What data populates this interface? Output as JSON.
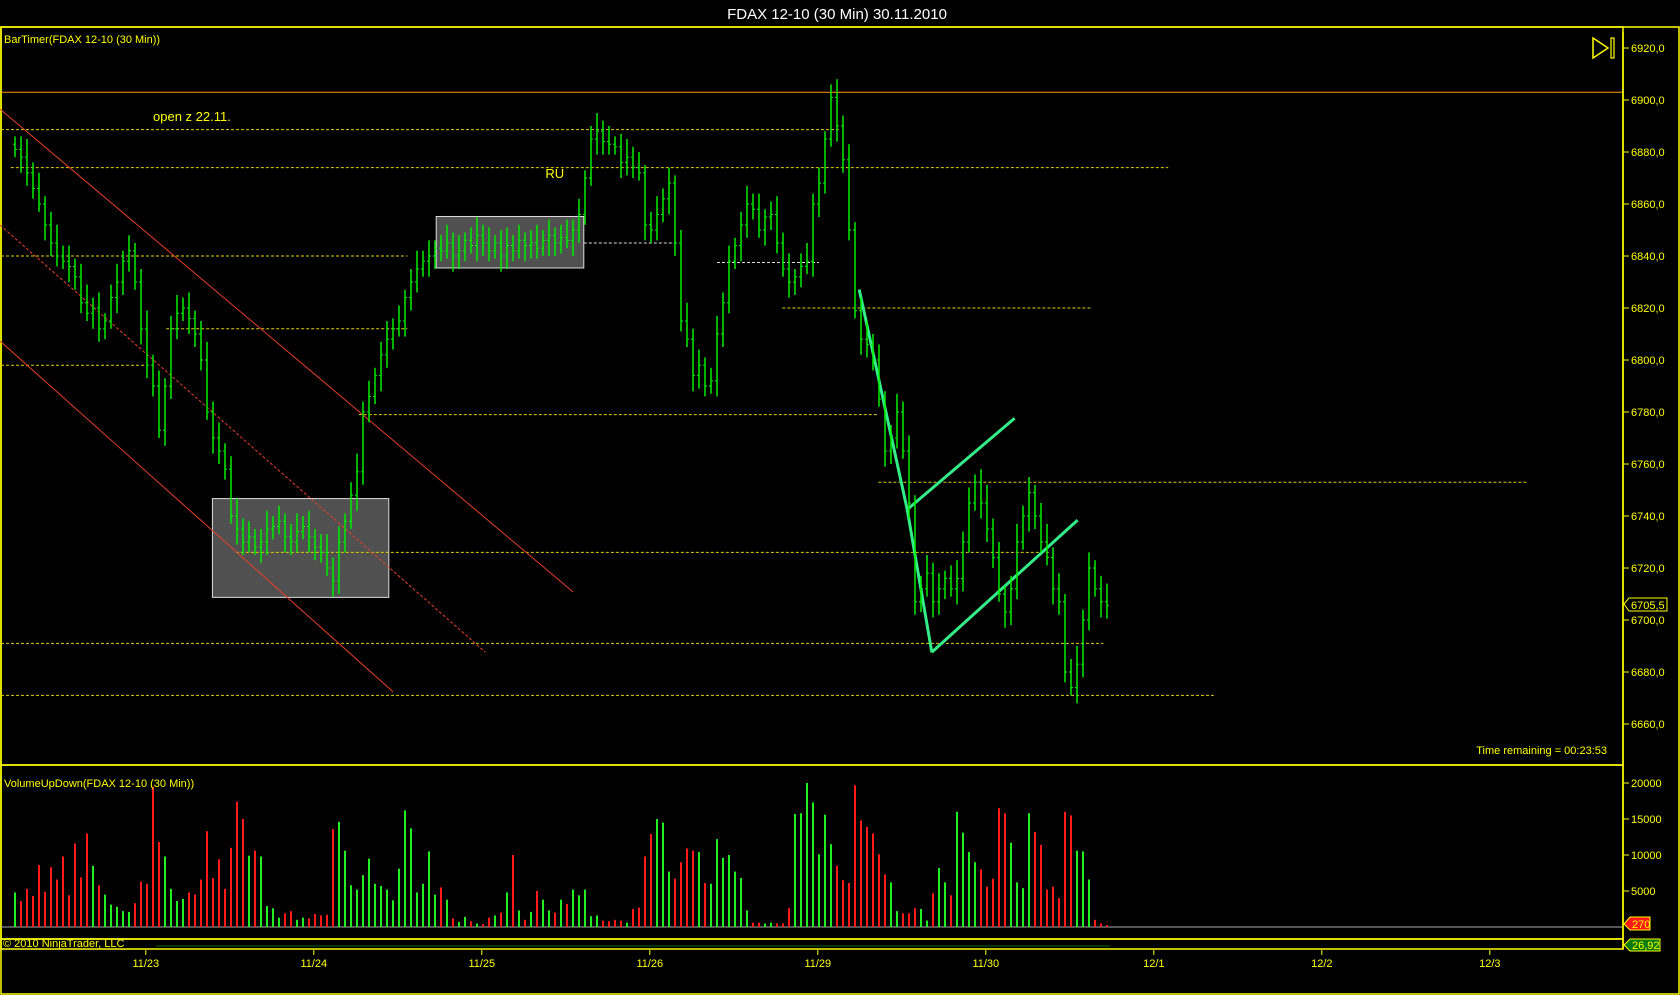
{
  "window": {
    "title": "FDAX 12-10 (30 Min)  30.11.2010"
  },
  "panels": {
    "price_label": "BarTimer(FDAX 12-10 (30 Min))",
    "volume_label": "VolumeUpDown(FDAX 12-10 (30 Min))",
    "copyright": "© 2010 NinjaTrader, LLC",
    "time_remaining": "Time remaining = 00:23:53",
    "last_price_tag": "6705,5",
    "last_volume_tag": "270",
    "indicator_tag": "26,92",
    "scroll_end_icon": "scroll-to-end-icon"
  },
  "colors": {
    "up": "#22ee22",
    "down": "#ff1a1a",
    "axis": "#ffff00",
    "price_bar": "#00ee00",
    "hline": "#e0d000",
    "channel": "#e8402a",
    "trend": "#33ee88",
    "orange": "#ff9900"
  },
  "chart_data": {
    "type": "bar",
    "bar_interval": "30 Min",
    "price_ticks": [
      "6920,0",
      "6900,0",
      "6880,0",
      "6860,0",
      "6840,0",
      "6820,0",
      "6800,0",
      "6780,0",
      "6760,0",
      "6740,0",
      "6720,0",
      "6700,0",
      "6680,0",
      "6660,0"
    ],
    "price_tick_values": [
      6920,
      6900,
      6880,
      6860,
      6840,
      6820,
      6800,
      6780,
      6760,
      6740,
      6720,
      6700,
      6680,
      6660
    ],
    "volume_ticks": [
      "20000",
      "15000",
      "10000",
      "5000"
    ],
    "volume_tick_values": [
      20000,
      15000,
      10000,
      5000
    ],
    "date_ticks": [
      {
        "label": "11/23",
        "bar": 21.8
      },
      {
        "label": "11/24",
        "bar": 49.8
      },
      {
        "label": "11/25",
        "bar": 77.8
      },
      {
        "label": "11/26",
        "bar": 105.8
      },
      {
        "label": "11/29",
        "bar": 133.8
      },
      {
        "label": "11/30",
        "bar": 161.8
      },
      {
        "label": "12/1",
        "bar": 189.8
      },
      {
        "label": "12/2",
        "bar": 217.8
      },
      {
        "label": "12/3",
        "bar": 245.8
      }
    ],
    "close": [
      6881,
      6878,
      6872,
      6866,
      6860,
      6852,
      6845,
      6840,
      6838,
      6836,
      6832,
      6822,
      6818,
      6820,
      6812,
      6815,
      6824,
      6830,
      6838,
      6842,
      6830,
      6812,
      6798,
      6790,
      6773,
      6790,
      6812,
      6818,
      6820,
      6816,
      6810,
      6800,
      6780,
      6770,
      6765,
      6758,
      6740,
      6735,
      6730,
      6732,
      6728,
      6730,
      6735,
      6736,
      6738,
      6732,
      6730,
      6734,
      6736,
      6732,
      6728,
      6726,
      6720,
      6715,
      6730,
      6738,
      6748,
      6757,
      6780,
      6786,
      6794,
      6802,
      6808,
      6812,
      6815,
      6824,
      6830,
      6835,
      6838,
      6840,
      6843,
      6842,
      6845,
      6840,
      6842,
      6846,
      6844,
      6848,
      6845,
      6842,
      6845,
      6840,
      6844,
      6842,
      6846,
      6844,
      6845,
      6843,
      6846,
      6848,
      6845,
      6847,
      6846,
      6850,
      6856,
      6870,
      6885,
      6888,
      6884,
      6883,
      6882,
      6876,
      6878,
      6874,
      6872,
      6852,
      6850,
      6856,
      6862,
      6868,
      6845,
      6815,
      6808,
      6794,
      6798,
      6790,
      6792,
      6810,
      6822,
      6838,
      6844,
      6852,
      6860,
      6858,
      6850,
      6855,
      6856,
      6845,
      6835,
      6830,
      6832,
      6836,
      6838,
      6860,
      6868,
      6885,
      6901,
      6890,
      6877,
      6850,
      6819,
      6808,
      6806,
      6800,
      6785,
      6765,
      6770,
      6780,
      6765,
      6745,
      6707,
      6712,
      6718,
      6707,
      6712,
      6716,
      6712,
      6716,
      6730,
      6745,
      6753,
      6745,
      6735,
      6724,
      6710,
      6703,
      6712,
      6730,
      6740,
      6749,
      6740,
      6730,
      6724,
      6712,
      6707,
      6680,
      6674,
      6683,
      6700,
      6720,
      6712,
      6707,
      6705.5
    ],
    "volume": [
      4800,
      3600,
      5300,
      4300,
      8600,
      4900,
      8300,
      6600,
      9800,
      4400,
      11600,
      6900,
      13000,
      8500,
      5800,
      4500,
      3100,
      2800,
      2200,
      2100,
      3300,
      6300,
      6000,
      19500,
      11800,
      9800,
      5300,
      3600,
      3900,
      4800,
      4500,
      6600,
      13300,
      6800,
      9400,
      5300,
      11000,
      17400,
      15000,
      9900,
      10600,
      9800,
      2900,
      2600,
      1300,
      1900,
      2200,
      1000,
      1300,
      1200,
      1800,
      1600,
      1700,
      13600,
      14600,
      10600,
      5800,
      5200,
      7200,
      9500,
      6000,
      5700,
      5200,
      3700,
      8100,
      16200,
      13700,
      4800,
      6000,
      10500,
      4500,
      5500,
      3800,
      1200,
      700,
      1400,
      800,
      500,
      400,
      1300,
      1600,
      2000,
      4800,
      10000,
      2300,
      1000,
      2100,
      5000,
      3800,
      2300,
      2000,
      3800,
      3200,
      5200,
      4400,
      5200,
      1500,
      1600,
      900,
      800,
      1000,
      900,
      600,
      2500,
      2700,
      9800,
      12900,
      15000,
      14500,
      7700,
      6700,
      9000,
      10900,
      10600,
      10400,
      6100,
      6000,
      12200,
      9600,
      10000,
      7700,
      6800,
      2300,
      600,
      600,
      500,
      600,
      500,
      500,
      2600,
      15700,
      15800,
      20000,
      17300,
      10100,
      15600,
      11500,
      8500,
      6500,
      6100,
      19700,
      14800,
      13900,
      13000,
      10100,
      7300,
      6200,
      2200,
      1900,
      1900,
      2600,
      2500,
      900,
      4700,
      8200,
      6200,
      4400,
      16000,
      13100,
      10400,
      9000,
      8000,
      5600,
      6700,
      16500,
      15800,
      11700,
      6200,
      5400,
      15800,
      13200,
      11400,
      5200,
      5600,
      4000,
      16000,
      15500,
      10600,
      10500,
      6600,
      1000,
      500,
      270
    ],
    "price_range": [
      6651,
      6925
    ],
    "volume_range": [
      0,
      21000
    ],
    "horizontal_levels": [
      {
        "price": 6888.6,
        "from": -3,
        "to": 137.3,
        "style": "dashed"
      },
      {
        "price": 6874,
        "from": -0.7,
        "to": 192.2,
        "style": "dashed"
      },
      {
        "price": 6840,
        "from": -3,
        "to": 65.4,
        "style": "dashed"
      },
      {
        "price": 6845,
        "from": 94.8,
        "to": 110,
        "style": "dashed-white"
      },
      {
        "price": 6837.5,
        "from": 117,
        "to": 134,
        "style": "dashed-white"
      },
      {
        "price": 6820,
        "from": 127.9,
        "to": 179.6,
        "style": "dashed"
      },
      {
        "price": 6812,
        "from": 25.2,
        "to": 65.4,
        "style": "dashed"
      },
      {
        "price": 6798,
        "from": -3,
        "to": 21.6,
        "style": "dashed"
      },
      {
        "price": 6779,
        "from": 57.3,
        "to": 143.9,
        "style": "dashed"
      },
      {
        "price": 6753,
        "from": 143.9,
        "to": 252,
        "style": "dashed"
      },
      {
        "price": 6726,
        "from": 36.8,
        "to": 172.5,
        "style": "dashed"
      },
      {
        "price": 6691,
        "from": -3,
        "to": 181.4,
        "style": "dashed"
      },
      {
        "price": 6671,
        "from": -3,
        "to": 199.8,
        "style": "dashed"
      },
      {
        "price": 6903,
        "from": -3,
        "to": 268,
        "style": "solid-orange"
      }
    ],
    "channel_lines": [
      {
        "p1": [
          -2.5,
          6896.5
        ],
        "p2": [
          93,
          6710.8
        ],
        "dashed": false
      },
      {
        "p1": [
          -2.5,
          6807.3
        ],
        "p2": [
          63,
          6672.4
        ],
        "dashed": false
      },
      {
        "p1": [
          -2.5,
          6851.9
        ],
        "p2": [
          78.4,
          6687.6
        ],
        "dashed": true
      }
    ],
    "trend_lines": [
      {
        "p1": [
          140.7,
          6827.1
        ],
        "p2": [
          148.7,
          6742.5
        ]
      },
      {
        "p1": [
          148.7,
          6742.5
        ],
        "p2": [
          152.8,
          6687.6
        ]
      },
      {
        "p1": [
          148.7,
          6742.5
        ],
        "p2": [
          166.6,
          6777.6
        ]
      },
      {
        "p1": [
          152.8,
          6687.6
        ],
        "p2": [
          177.1,
          6738.4
        ]
      }
    ],
    "boxes": [
      {
        "from": 32.9,
        "to": 62.3,
        "top": 6746.7,
        "bottom": 6708.7
      },
      {
        "from": 70.2,
        "to": 94.8,
        "top": 6855.2,
        "bottom": 6835.4
      }
    ],
    "annotations": [
      {
        "text": "open z 22.11.",
        "bar": 23,
        "price": 6892
      },
      {
        "text": "RU",
        "bar": 88.4,
        "price": 6870
      }
    ]
  }
}
